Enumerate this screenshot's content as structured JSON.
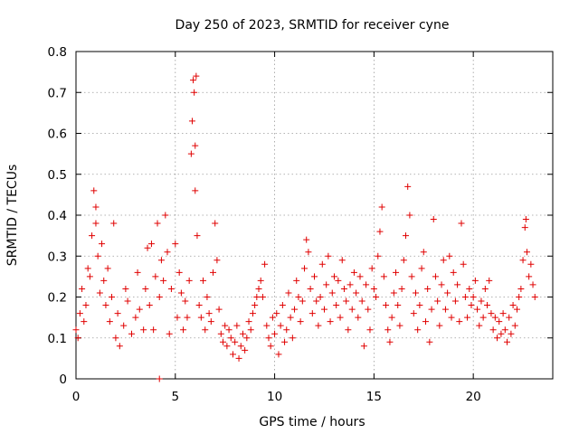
{
  "chart_data": {
    "type": "scatter",
    "title": "Day 250 of 2023, SRMTID for receiver cyne",
    "xlabel": "GPS time / hours",
    "ylabel": "SRMTID / TECUs",
    "xlim": [
      0,
      24
    ],
    "ylim": [
      0,
      0.8
    ],
    "xticks": [
      0,
      5,
      10,
      15,
      20
    ],
    "xtick_labels": [
      "0",
      "5",
      "10",
      "15",
      "20"
    ],
    "yticks": [
      0,
      0.1,
      0.2,
      0.3,
      0.4,
      0.5,
      0.6,
      0.7,
      0.8
    ],
    "ytick_labels": [
      "0",
      "0.1",
      "0.2",
      "0.3",
      "0.4",
      "0.5",
      "0.6",
      "0.7",
      "0.8"
    ],
    "grid": true,
    "marker": "plus",
    "color": "#e00000",
    "series": [
      {
        "name": "SRMTID",
        "points": [
          [
            0.0,
            0.12
          ],
          [
            0.1,
            0.1
          ],
          [
            0.2,
            0.16
          ],
          [
            0.3,
            0.22
          ],
          [
            0.4,
            0.14
          ],
          [
            0.5,
            0.18
          ],
          [
            0.6,
            0.27
          ],
          [
            0.7,
            0.25
          ],
          [
            0.8,
            0.35
          ],
          [
            0.9,
            0.46
          ],
          [
            1.0,
            0.38
          ],
          [
            1.0,
            0.42
          ],
          [
            1.1,
            0.3
          ],
          [
            1.2,
            0.21
          ],
          [
            1.3,
            0.33
          ],
          [
            1.4,
            0.24
          ],
          [
            1.5,
            0.18
          ],
          [
            1.6,
            0.27
          ],
          [
            1.7,
            0.14
          ],
          [
            1.8,
            0.2
          ],
          [
            1.9,
            0.38
          ],
          [
            2.0,
            0.1
          ],
          [
            2.1,
            0.16
          ],
          [
            2.2,
            0.08
          ],
          [
            2.4,
            0.13
          ],
          [
            2.5,
            0.22
          ],
          [
            2.6,
            0.19
          ],
          [
            2.8,
            0.11
          ],
          [
            3.0,
            0.15
          ],
          [
            3.1,
            0.26
          ],
          [
            3.2,
            0.17
          ],
          [
            3.4,
            0.12
          ],
          [
            3.5,
            0.22
          ],
          [
            3.6,
            0.32
          ],
          [
            3.7,
            0.18
          ],
          [
            3.8,
            0.33
          ],
          [
            3.9,
            0.12
          ],
          [
            4.0,
            0.25
          ],
          [
            4.1,
            0.38
          ],
          [
            4.2,
            0.2
          ],
          [
            4.2,
            0.0
          ],
          [
            4.3,
            0.29
          ],
          [
            4.4,
            0.24
          ],
          [
            4.5,
            0.4
          ],
          [
            4.6,
            0.31
          ],
          [
            4.7,
            0.11
          ],
          [
            4.8,
            0.22
          ],
          [
            5.0,
            0.33
          ],
          [
            5.1,
            0.15
          ],
          [
            5.2,
            0.26
          ],
          [
            5.3,
            0.21
          ],
          [
            5.4,
            0.12
          ],
          [
            5.5,
            0.19
          ],
          [
            5.6,
            0.15
          ],
          [
            5.7,
            0.24
          ],
          [
            5.8,
            0.55
          ],
          [
            5.85,
            0.63
          ],
          [
            5.9,
            0.73
          ],
          [
            5.95,
            0.7
          ],
          [
            6.0,
            0.57
          ],
          [
            6.0,
            0.46
          ],
          [
            6.05,
            0.74
          ],
          [
            6.1,
            0.35
          ],
          [
            6.2,
            0.18
          ],
          [
            6.3,
            0.15
          ],
          [
            6.4,
            0.24
          ],
          [
            6.5,
            0.12
          ],
          [
            6.6,
            0.2
          ],
          [
            6.7,
            0.16
          ],
          [
            6.8,
            0.14
          ],
          [
            6.9,
            0.26
          ],
          [
            7.0,
            0.38
          ],
          [
            7.1,
            0.29
          ],
          [
            7.2,
            0.17
          ],
          [
            7.3,
            0.11
          ],
          [
            7.4,
            0.09
          ],
          [
            7.5,
            0.13
          ],
          [
            7.6,
            0.08
          ],
          [
            7.7,
            0.12
          ],
          [
            7.8,
            0.1
          ],
          [
            7.9,
            0.06
          ],
          [
            8.0,
            0.09
          ],
          [
            8.1,
            0.13
          ],
          [
            8.2,
            0.05
          ],
          [
            8.3,
            0.08
          ],
          [
            8.4,
            0.11
          ],
          [
            8.5,
            0.07
          ],
          [
            8.6,
            0.1
          ],
          [
            8.7,
            0.14
          ],
          [
            8.8,
            0.12
          ],
          [
            8.9,
            0.16
          ],
          [
            9.0,
            0.18
          ],
          [
            9.1,
            0.2
          ],
          [
            9.2,
            0.22
          ],
          [
            9.3,
            0.24
          ],
          [
            9.4,
            0.2
          ],
          [
            9.5,
            0.28
          ],
          [
            9.6,
            0.13
          ],
          [
            9.7,
            0.1
          ],
          [
            9.8,
            0.08
          ],
          [
            9.9,
            0.15
          ],
          [
            10.0,
            0.11
          ],
          [
            10.1,
            0.16
          ],
          [
            10.2,
            0.06
          ],
          [
            10.3,
            0.13
          ],
          [
            10.4,
            0.18
          ],
          [
            10.5,
            0.09
          ],
          [
            10.6,
            0.12
          ],
          [
            10.7,
            0.21
          ],
          [
            10.8,
            0.15
          ],
          [
            10.9,
            0.1
          ],
          [
            11.0,
            0.17
          ],
          [
            11.1,
            0.24
          ],
          [
            11.2,
            0.2
          ],
          [
            11.3,
            0.14
          ],
          [
            11.4,
            0.19
          ],
          [
            11.5,
            0.27
          ],
          [
            11.6,
            0.34
          ],
          [
            11.7,
            0.31
          ],
          [
            11.8,
            0.22
          ],
          [
            11.9,
            0.16
          ],
          [
            12.0,
            0.25
          ],
          [
            12.1,
            0.19
          ],
          [
            12.2,
            0.13
          ],
          [
            12.3,
            0.2
          ],
          [
            12.4,
            0.28
          ],
          [
            12.5,
            0.17
          ],
          [
            12.6,
            0.23
          ],
          [
            12.7,
            0.3
          ],
          [
            12.8,
            0.14
          ],
          [
            12.9,
            0.21
          ],
          [
            13.0,
            0.25
          ],
          [
            13.1,
            0.18
          ],
          [
            13.2,
            0.24
          ],
          [
            13.3,
            0.15
          ],
          [
            13.4,
            0.29
          ],
          [
            13.5,
            0.22
          ],
          [
            13.6,
            0.19
          ],
          [
            13.7,
            0.12
          ],
          [
            13.8,
            0.23
          ],
          [
            13.9,
            0.17
          ],
          [
            14.0,
            0.26
          ],
          [
            14.1,
            0.21
          ],
          [
            14.2,
            0.15
          ],
          [
            14.3,
            0.25
          ],
          [
            14.4,
            0.19
          ],
          [
            14.5,
            0.08
          ],
          [
            14.6,
            0.23
          ],
          [
            14.7,
            0.17
          ],
          [
            14.8,
            0.12
          ],
          [
            14.9,
            0.27
          ],
          [
            15.0,
            0.22
          ],
          [
            15.1,
            0.2
          ],
          [
            15.2,
            0.3
          ],
          [
            15.3,
            0.36
          ],
          [
            15.4,
            0.42
          ],
          [
            15.5,
            0.25
          ],
          [
            15.6,
            0.18
          ],
          [
            15.7,
            0.12
          ],
          [
            15.8,
            0.09
          ],
          [
            15.9,
            0.15
          ],
          [
            16.0,
            0.21
          ],
          [
            16.1,
            0.26
          ],
          [
            16.2,
            0.18
          ],
          [
            16.3,
            0.13
          ],
          [
            16.4,
            0.22
          ],
          [
            16.5,
            0.29
          ],
          [
            16.6,
            0.35
          ],
          [
            16.7,
            0.47
          ],
          [
            16.8,
            0.4
          ],
          [
            16.9,
            0.25
          ],
          [
            17.0,
            0.16
          ],
          [
            17.1,
            0.21
          ],
          [
            17.2,
            0.12
          ],
          [
            17.3,
            0.18
          ],
          [
            17.4,
            0.27
          ],
          [
            17.5,
            0.31
          ],
          [
            17.6,
            0.14
          ],
          [
            17.7,
            0.22
          ],
          [
            17.8,
            0.09
          ],
          [
            17.9,
            0.17
          ],
          [
            18.0,
            0.39
          ],
          [
            18.1,
            0.25
          ],
          [
            18.2,
            0.19
          ],
          [
            18.3,
            0.13
          ],
          [
            18.4,
            0.23
          ],
          [
            18.5,
            0.29
          ],
          [
            18.6,
            0.17
          ],
          [
            18.7,
            0.21
          ],
          [
            18.8,
            0.3
          ],
          [
            18.9,
            0.15
          ],
          [
            19.0,
            0.26
          ],
          [
            19.1,
            0.19
          ],
          [
            19.2,
            0.23
          ],
          [
            19.3,
            0.14
          ],
          [
            19.4,
            0.38
          ],
          [
            19.5,
            0.28
          ],
          [
            19.6,
            0.2
          ],
          [
            19.7,
            0.15
          ],
          [
            19.8,
            0.22
          ],
          [
            19.9,
            0.18
          ],
          [
            20.0,
            0.2
          ],
          [
            20.1,
            0.24
          ],
          [
            20.2,
            0.17
          ],
          [
            20.3,
            0.13
          ],
          [
            20.4,
            0.19
          ],
          [
            20.5,
            0.15
          ],
          [
            20.6,
            0.22
          ],
          [
            20.7,
            0.18
          ],
          [
            20.8,
            0.24
          ],
          [
            20.9,
            0.16
          ],
          [
            21.0,
            0.12
          ],
          [
            21.1,
            0.15
          ],
          [
            21.2,
            0.1
          ],
          [
            21.3,
            0.14
          ],
          [
            21.4,
            0.11
          ],
          [
            21.5,
            0.16
          ],
          [
            21.6,
            0.12
          ],
          [
            21.7,
            0.09
          ],
          [
            21.8,
            0.15
          ],
          [
            21.9,
            0.11
          ],
          [
            22.0,
            0.18
          ],
          [
            22.1,
            0.13
          ],
          [
            22.2,
            0.17
          ],
          [
            22.3,
            0.2
          ],
          [
            22.4,
            0.22
          ],
          [
            22.5,
            0.29
          ],
          [
            22.6,
            0.37
          ],
          [
            22.65,
            0.39
          ],
          [
            22.7,
            0.31
          ],
          [
            22.8,
            0.25
          ],
          [
            22.9,
            0.28
          ],
          [
            23.0,
            0.23
          ],
          [
            23.1,
            0.2
          ]
        ]
      }
    ]
  }
}
